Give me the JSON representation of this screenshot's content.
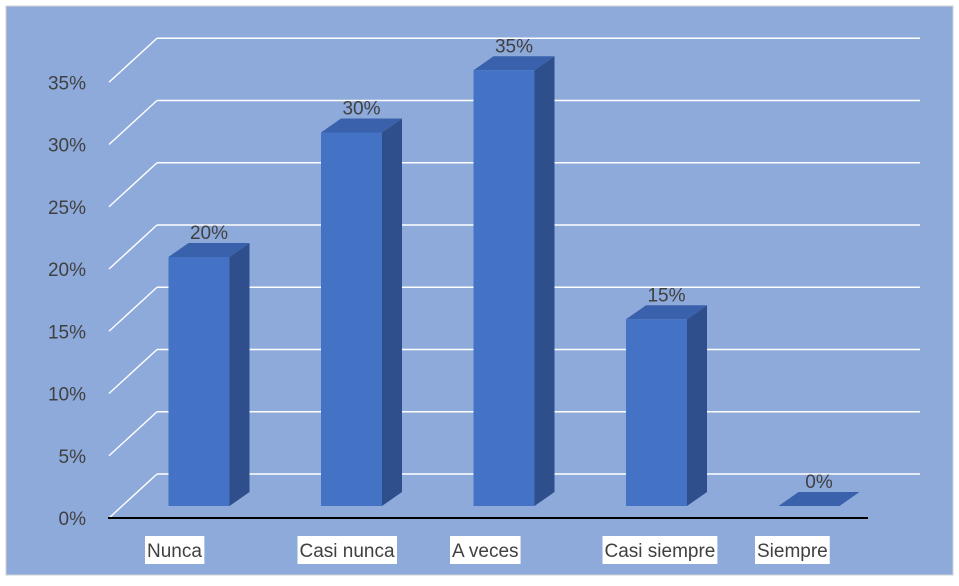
{
  "chart_data": {
    "type": "bar",
    "style": "3d-column",
    "categories": [
      "Nunca",
      "Casi nunca",
      "A veces",
      "Casi siempre",
      "Siempre"
    ],
    "values": [
      20,
      30,
      35,
      15,
      0
    ],
    "data_labels": [
      "20%",
      "30%",
      "35%",
      "15%",
      "0%"
    ],
    "y_ticks": [
      "0%",
      "5%",
      "10%",
      "15%",
      "20%",
      "25%",
      "30%",
      "35%"
    ],
    "ylim": [
      0,
      35
    ],
    "grid": true,
    "legend": "none",
    "colors": {
      "background": "#8eaadb",
      "bar_front": "#4472c4",
      "bar_side": "#2f4f8c",
      "bar_top": "#3a62ac",
      "gridline": "#ffffff",
      "axis": "#000000"
    }
  }
}
